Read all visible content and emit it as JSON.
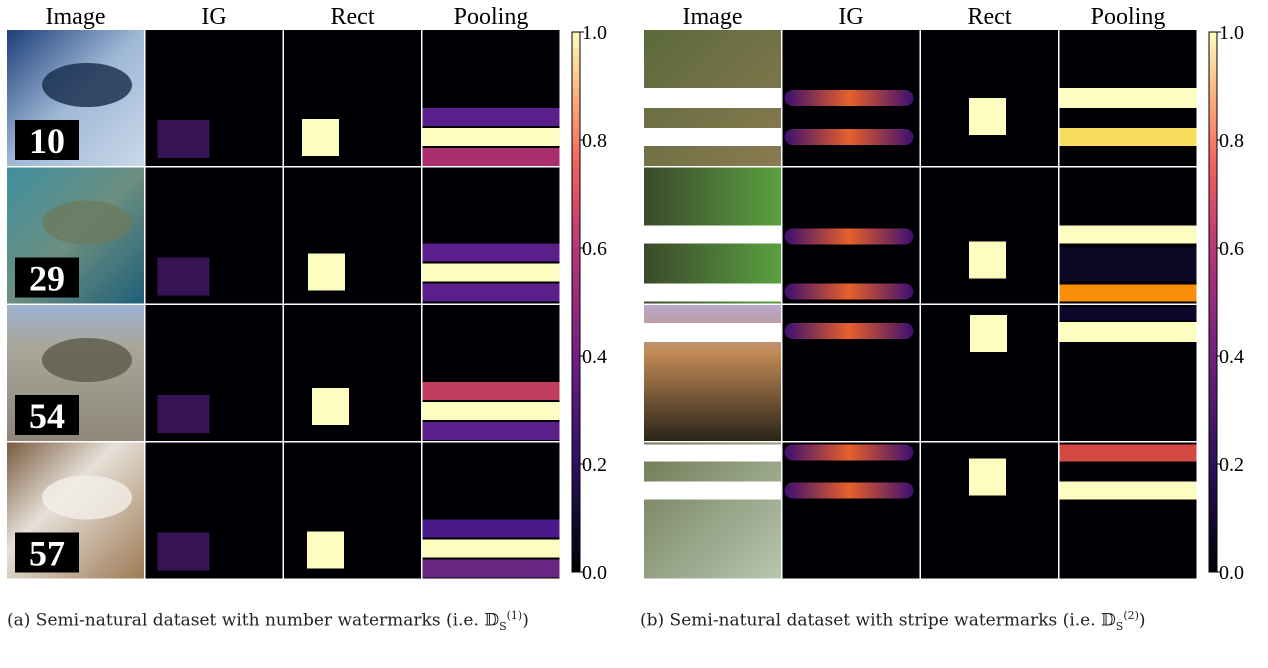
{
  "panels": [
    {
      "headers": [
        "Image",
        "IG",
        "Rect",
        "Pooling"
      ],
      "watermarks": [
        "10",
        "29",
        "54",
        "57"
      ],
      "colorbar_ticks": [
        {
          "value": 0,
          "label": "0.0"
        },
        {
          "value": 0.2,
          "label": "0.2"
        },
        {
          "value": 0.4,
          "label": "0.4"
        },
        {
          "value": 0.6,
          "label": "0.6"
        },
        {
          "value": 0.8,
          "label": "0.8"
        },
        {
          "value": 1,
          "label": "1.0"
        }
      ],
      "colorbar_lim": [
        0,
        1
      ],
      "caption": "(a) Semi-natural dataset with number watermarks (i.e. ",
      "symbol": "𝔻",
      "symbol_sub": "S",
      "symbol_sup": "(1)",
      "caption_end": ")"
    },
    {
      "headers": [
        "Image",
        "IG",
        "Rect",
        "Pooling"
      ],
      "colorbar_ticks": [
        {
          "value": 0,
          "label": "0.0"
        },
        {
          "value": 0.2,
          "label": "0.2"
        },
        {
          "value": 0.4,
          "label": "0.4"
        },
        {
          "value": 0.6,
          "label": "0.6"
        },
        {
          "value": 0.8,
          "label": "0.8"
        },
        {
          "value": 1,
          "label": "1.0"
        }
      ],
      "colorbar_lim": [
        0,
        1
      ],
      "caption": "(b) Semi-natural dataset with stripe watermarks (i.e. ",
      "symbol": "𝔻",
      "symbol_sub": "S",
      "symbol_sup": "(2)",
      "caption_end": ")"
    }
  ]
}
